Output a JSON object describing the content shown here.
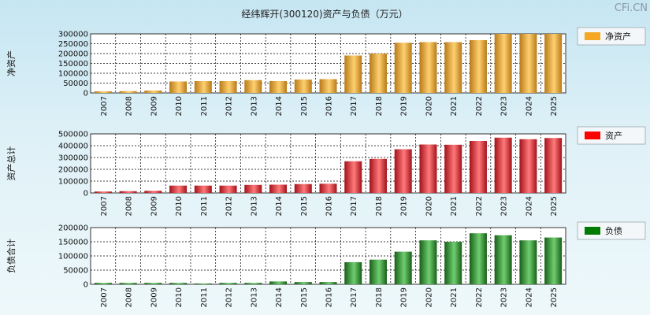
{
  "watermark": "CFi.CN",
  "chart_data": {
    "type": "bar",
    "title": "经纬辉开(300120)资产与负债（万元）",
    "categories": [
      "2007",
      "2008",
      "2009",
      "2010",
      "2011",
      "2012",
      "2013",
      "2014",
      "2015",
      "2016",
      "2017",
      "2018",
      "2019",
      "2020",
      "2021",
      "2022",
      "2023",
      "2024",
      "2025"
    ],
    "panels": [
      {
        "id": "net-assets",
        "ylabel": "净资产",
        "legend": "净资产",
        "color": "#f5a623",
        "colors": [
          "#b87a18",
          "#ffd070"
        ],
        "ylim": [
          0,
          300000
        ],
        "yticks": [
          0,
          50000,
          100000,
          150000,
          200000,
          250000,
          300000
        ],
        "values": [
          8000,
          9000,
          12000,
          58000,
          60000,
          60000,
          65000,
          60000,
          68000,
          70000,
          190000,
          200000,
          255000,
          258000,
          258000,
          268000,
          300000,
          300000,
          300000
        ]
      },
      {
        "id": "total-assets",
        "ylabel": "资产总计",
        "legend": "资产",
        "color": "#ff0000",
        "colors": [
          "#a3111a",
          "#ff7a7a"
        ],
        "ylim": [
          0,
          500000
        ],
        "yticks": [
          0,
          100000,
          200000,
          300000,
          400000,
          500000
        ],
        "values": [
          12000,
          15000,
          18000,
          62000,
          62000,
          62000,
          68000,
          70000,
          75000,
          78000,
          268000,
          288000,
          370000,
          410000,
          408000,
          440000,
          468000,
          455000,
          465000
        ]
      },
      {
        "id": "liabilities",
        "ylabel": "负债合计",
        "legend": "负债",
        "color": "#007a00",
        "colors": [
          "#185f18",
          "#6fce6f"
        ],
        "ylim": [
          0,
          200000
        ],
        "yticks": [
          0,
          50000,
          100000,
          150000,
          200000
        ],
        "values": [
          5000,
          5000,
          5000,
          5000,
          3000,
          5000,
          5000,
          10000,
          8000,
          8000,
          78000,
          87000,
          115000,
          155000,
          150000,
          180000,
          173000,
          155000,
          165000
        ]
      }
    ]
  }
}
